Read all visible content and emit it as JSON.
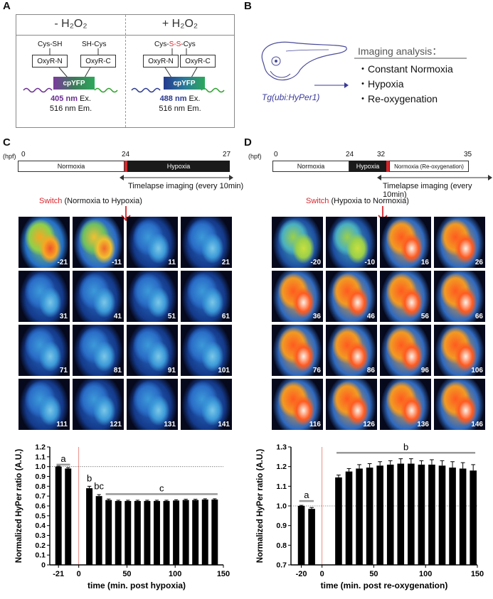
{
  "panelA": {
    "label": "A",
    "minus_title": "- H₂O₂",
    "plus_title": "+ H₂O₂",
    "minus_cys_left": "Cys-SH",
    "minus_cys_right": "SH-Cys",
    "plus_cys_prefix": "Cys-",
    "plus_cys_mid": "S-S",
    "plus_cys_suffix": "-Cys",
    "oxyr_n": "OxyR-N",
    "oxyr_c": "OxyR-C",
    "cpyfp": "cpYFP",
    "minus_ex_nm": "405 nm",
    "minus_ex": " Ex.",
    "minus_em": "516 nm Em.",
    "plus_ex_nm": "488 nm",
    "plus_ex": " Ex.",
    "plus_em": "516 nm Em.",
    "color_405": "#6a2c91",
    "color_488": "#2b3a8f",
    "color_ss": "#d9262c"
  },
  "panelB": {
    "label": "B",
    "tg": "Tg(ubi:HyPer1)",
    "title": "Imaging analysis：",
    "items": [
      "・Constant Normoxia",
      "・Hypoxia",
      "・Re-oxygenation"
    ]
  },
  "panelC": {
    "label": "C",
    "hpf": "(hpf)",
    "ticks": [
      "0",
      "24",
      "27"
    ],
    "seg1": "Normoxia",
    "seg2": "Hypoxia",
    "timelapse": "Timelapse imaging (every 10min)",
    "switch_word": "Switch",
    "switch_rest": " (Normoxia to Hypoxia)",
    "tiles": [
      "-21",
      "-11",
      "11",
      "21",
      "31",
      "41",
      "51",
      "61",
      "71",
      "81",
      "91",
      "101",
      "111",
      "121",
      "131",
      "141"
    ]
  },
  "panelD": {
    "label": "D",
    "hpf": "(hpf)",
    "ticks": [
      "0",
      "24",
      "32",
      "35"
    ],
    "seg1": "Normoxia",
    "seg2": "Hypoxia",
    "seg3": "Normoxia (Re-oxygenation)",
    "timelapse": "Timelapse imaging (every 10min)",
    "switch_word": "Switch",
    "switch_rest": " (Hypoxia to Normoxia)",
    "tiles": [
      "-20",
      "-10",
      "16",
      "26",
      "36",
      "46",
      "56",
      "66",
      "76",
      "86",
      "96",
      "106",
      "116",
      "126",
      "136",
      "146"
    ]
  },
  "chart_data": [
    {
      "type": "bar",
      "ylabel": "Normalized HyPer ratio (A.U.)",
      "xlabel": "time (min. post hypoxia)",
      "ylim": [
        0,
        1.2
      ],
      "yticks": [
        "0",
        "0.1",
        "0.2",
        "0.3",
        "0.4",
        "0.5",
        "0.6",
        "0.7",
        "0.8",
        "0.9",
        "1.0",
        "1.1",
        "1.2"
      ],
      "xticks": [
        {
          "v": -21,
          "t": "-21"
        },
        {
          "v": 0,
          "t": "0"
        },
        {
          "v": 50,
          "t": "50"
        },
        {
          "v": 100,
          "t": "100"
        },
        {
          "v": 150,
          "t": "150"
        }
      ],
      "xlim": [
        -30,
        150
      ],
      "x": [
        -21,
        -11,
        11,
        21,
        31,
        41,
        51,
        61,
        71,
        81,
        91,
        101,
        111,
        121,
        131,
        141
      ],
      "values": [
        1.0,
        0.98,
        0.78,
        0.7,
        0.66,
        0.65,
        0.65,
        0.65,
        0.65,
        0.65,
        0.65,
        0.655,
        0.66,
        0.66,
        0.665,
        0.665
      ],
      "errors": [
        0.005,
        0.01,
        0.02,
        0.015,
        0.01,
        0.008,
        0.008,
        0.008,
        0.008,
        0.008,
        0.008,
        0.008,
        0.008,
        0.008,
        0.008,
        0.008
      ],
      "refline": 1.0,
      "annotations": [
        {
          "text": "a",
          "x1": -23,
          "x2": -9,
          "y": 1.02
        },
        {
          "text": "b",
          "x1": 11,
          "x2": 11,
          "y": 0.82
        },
        {
          "text": "bc",
          "x1": 21,
          "x2": 21,
          "y": 0.74
        },
        {
          "text": "c",
          "x1": 28,
          "x2": 144,
          "y": 0.72
        }
      ],
      "color": "#000000",
      "switch_color": "#e8736a"
    },
    {
      "type": "bar",
      "ylabel": "Normalized HyPer ratio (A.U.)",
      "xlabel": "time (min. post re-oxygenation)",
      "ylim": [
        0.7,
        1.3
      ],
      "yticks": [
        "0.7",
        "0.8",
        "0.9",
        "1.0",
        "1.1",
        "1.2",
        "1.3"
      ],
      "xticks": [
        {
          "v": -20,
          "t": "-20"
        },
        {
          "v": 0,
          "t": "0"
        },
        {
          "v": 50,
          "t": "50"
        },
        {
          "v": 100,
          "t": "100"
        },
        {
          "v": 150,
          "t": "150"
        }
      ],
      "xlim": [
        -30,
        150
      ],
      "x": [
        -20,
        -10,
        16,
        26,
        36,
        46,
        56,
        66,
        76,
        86,
        96,
        106,
        116,
        126,
        136,
        146
      ],
      "values": [
        1.0,
        0.985,
        1.145,
        1.175,
        1.19,
        1.195,
        1.205,
        1.21,
        1.215,
        1.215,
        1.21,
        1.21,
        1.205,
        1.195,
        1.19,
        1.18
      ],
      "errors": [
        0.003,
        0.007,
        0.012,
        0.015,
        0.02,
        0.02,
        0.02,
        0.02,
        0.025,
        0.025,
        0.02,
        0.025,
        0.025,
        0.03,
        0.03,
        0.03
      ],
      "refline": 1.0,
      "annotations": [
        {
          "text": "a",
          "x1": -22,
          "x2": -8,
          "y": 1.025
        },
        {
          "text": "b",
          "x1": 14,
          "x2": 148,
          "y": 1.27
        }
      ],
      "color": "#000000",
      "switch_color": "#e8736a"
    }
  ]
}
